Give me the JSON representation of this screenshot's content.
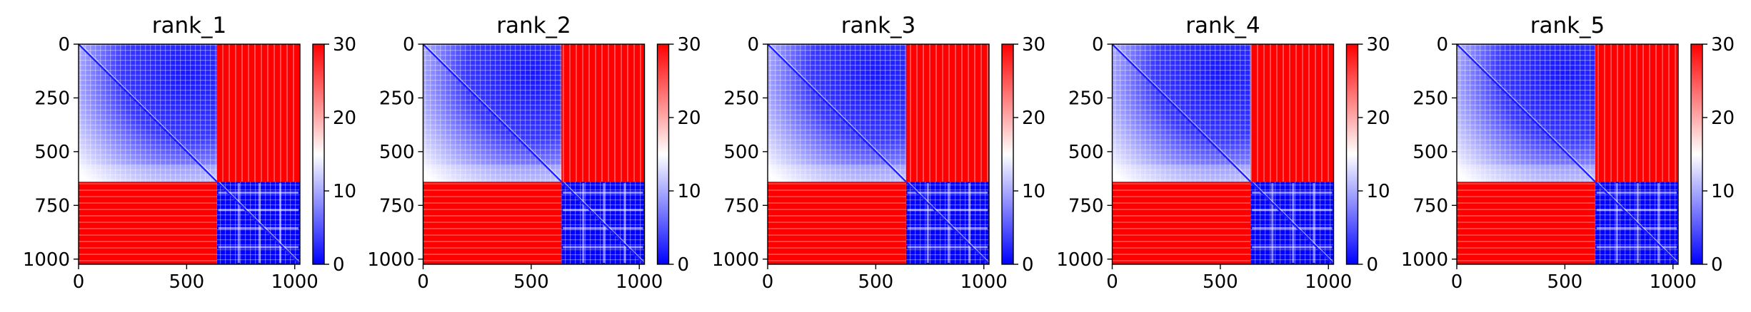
{
  "chart_data": [
    {
      "type": "heatmap",
      "title": "rank_1",
      "xlabel": "",
      "ylabel": "",
      "x_ticks": [
        0,
        500,
        1000
      ],
      "y_ticks": [
        0,
        250,
        500,
        750,
        1000
      ],
      "xlim": [
        0,
        1024
      ],
      "ylim": [
        1024,
        0
      ],
      "colorbar": {
        "ticks": [
          0,
          10,
          20,
          30
        ],
        "range": [
          0,
          30
        ],
        "cmap": "bwr"
      },
      "blocks": [
        {
          "x": [
            0,
            640
          ],
          "y": [
            0,
            640
          ],
          "level": "low",
          "diagonal_start": 0
        },
        {
          "x": [
            640,
            1024
          ],
          "y": [
            640,
            1024
          ],
          "level": "low",
          "diagonal_start": 640
        },
        {
          "x": [
            640,
            1024
          ],
          "y": [
            0,
            640
          ],
          "level": "high"
        },
        {
          "x": [
            0,
            640
          ],
          "y": [
            640,
            1024
          ],
          "level": "high"
        }
      ]
    },
    {
      "type": "heatmap",
      "title": "rank_2",
      "xlabel": "",
      "ylabel": "",
      "x_ticks": [
        0,
        500,
        1000
      ],
      "y_ticks": [
        0,
        250,
        500,
        750,
        1000
      ],
      "xlim": [
        0,
        1024
      ],
      "ylim": [
        1024,
        0
      ],
      "colorbar": {
        "ticks": [
          0,
          10,
          20,
          30
        ],
        "range": [
          0,
          30
        ],
        "cmap": "bwr"
      },
      "blocks": [
        {
          "x": [
            0,
            640
          ],
          "y": [
            0,
            640
          ],
          "level": "low",
          "diagonal_start": 0
        },
        {
          "x": [
            640,
            1024
          ],
          "y": [
            640,
            1024
          ],
          "level": "low",
          "diagonal_start": 640
        },
        {
          "x": [
            640,
            1024
          ],
          "y": [
            0,
            640
          ],
          "level": "high"
        },
        {
          "x": [
            0,
            640
          ],
          "y": [
            640,
            1024
          ],
          "level": "high"
        }
      ]
    },
    {
      "type": "heatmap",
      "title": "rank_3",
      "xlabel": "",
      "ylabel": "",
      "x_ticks": [
        0,
        500,
        1000
      ],
      "y_ticks": [
        0,
        250,
        500,
        750,
        1000
      ],
      "xlim": [
        0,
        1024
      ],
      "ylim": [
        1024,
        0
      ],
      "colorbar": {
        "ticks": [
          0,
          10,
          20,
          30
        ],
        "range": [
          0,
          30
        ],
        "cmap": "bwr"
      },
      "blocks": [
        {
          "x": [
            0,
            640
          ],
          "y": [
            0,
            640
          ],
          "level": "low",
          "diagonal_start": 0
        },
        {
          "x": [
            640,
            1024
          ],
          "y": [
            640,
            1024
          ],
          "level": "low",
          "diagonal_start": 640
        },
        {
          "x": [
            640,
            1024
          ],
          "y": [
            0,
            640
          ],
          "level": "high"
        },
        {
          "x": [
            0,
            640
          ],
          "y": [
            640,
            1024
          ],
          "level": "high"
        }
      ]
    },
    {
      "type": "heatmap",
      "title": "rank_4",
      "xlabel": "",
      "ylabel": "",
      "x_ticks": [
        0,
        500,
        1000
      ],
      "y_ticks": [
        0,
        250,
        500,
        750,
        1000
      ],
      "xlim": [
        0,
        1024
      ],
      "ylim": [
        1024,
        0
      ],
      "colorbar": {
        "ticks": [
          0,
          10,
          20,
          30
        ],
        "range": [
          0,
          30
        ],
        "cmap": "bwr"
      },
      "blocks": [
        {
          "x": [
            0,
            640
          ],
          "y": [
            0,
            640
          ],
          "level": "low",
          "diagonal_start": 0
        },
        {
          "x": [
            640,
            1024
          ],
          "y": [
            640,
            1024
          ],
          "level": "low",
          "diagonal_start": 640
        },
        {
          "x": [
            640,
            1024
          ],
          "y": [
            0,
            640
          ],
          "level": "high"
        },
        {
          "x": [
            0,
            640
          ],
          "y": [
            640,
            1024
          ],
          "level": "high"
        }
      ]
    },
    {
      "type": "heatmap",
      "title": "rank_5",
      "xlabel": "",
      "ylabel": "",
      "x_ticks": [
        0,
        500,
        1000
      ],
      "y_ticks": [
        0,
        250,
        500,
        750,
        1000
      ],
      "xlim": [
        0,
        1024
      ],
      "ylim": [
        1024,
        0
      ],
      "colorbar": {
        "ticks": [
          0,
          10,
          20,
          30
        ],
        "range": [
          0,
          30
        ],
        "cmap": "bwr"
      },
      "blocks": [
        {
          "x": [
            0,
            640
          ],
          "y": [
            0,
            640
          ],
          "level": "low",
          "diagonal_start": 0
        },
        {
          "x": [
            640,
            1024
          ],
          "y": [
            640,
            1024
          ],
          "level": "low",
          "diagonal_start": 640
        },
        {
          "x": [
            640,
            1024
          ],
          "y": [
            0,
            640
          ],
          "level": "high"
        },
        {
          "x": [
            0,
            640
          ],
          "y": [
            640,
            1024
          ],
          "level": "high"
        }
      ]
    }
  ],
  "colors": {
    "low": "#0000ff",
    "mid": "#ffffff",
    "high": "#ff0000"
  }
}
